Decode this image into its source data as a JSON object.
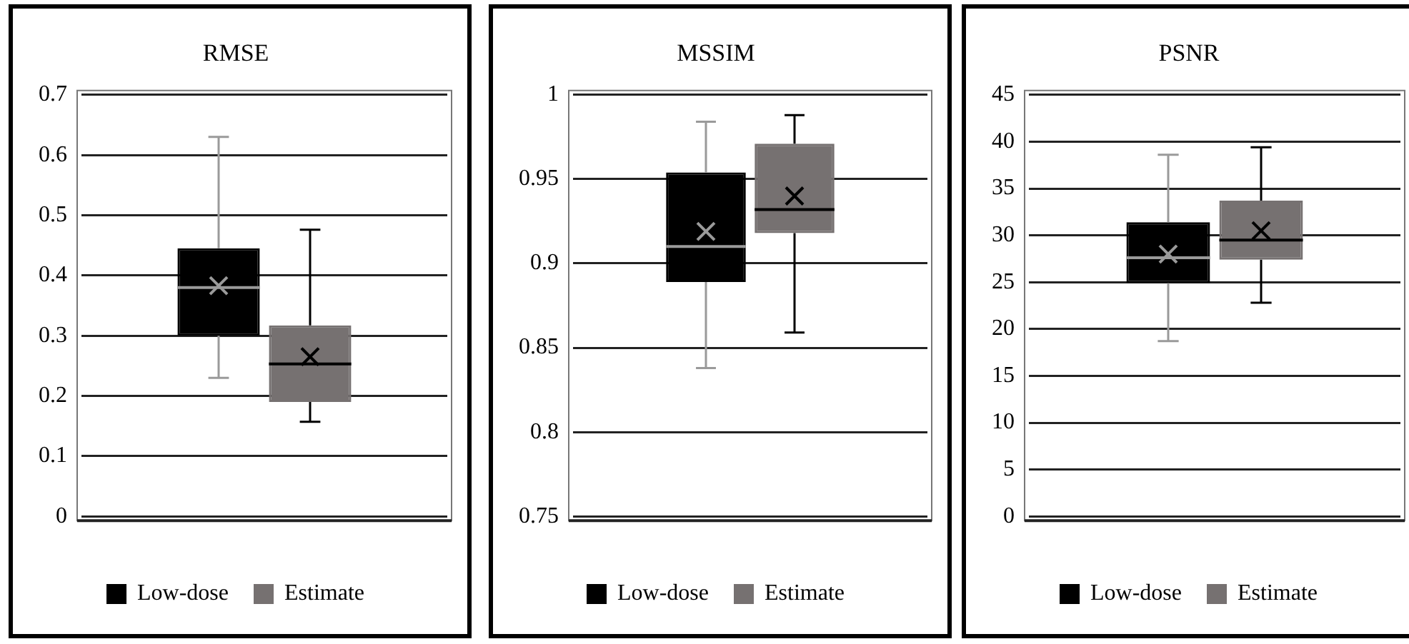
{
  "chart_data": [
    {
      "type": "box",
      "title": "RMSE",
      "categories": [
        null
      ],
      "series": [
        {
          "name": "Low-dose",
          "color": "#000000",
          "boxes": [
            {
              "low": 0.23,
              "q1": 0.3,
              "median": 0.38,
              "q3": 0.445,
              "high": 0.63,
              "mean": 0.383
            }
          ]
        },
        {
          "name": "Estimate",
          "color": "#767171",
          "boxes": [
            {
              "low": 0.157,
              "q1": 0.19,
              "median": 0.253,
              "q3": 0.317,
              "high": 0.476,
              "mean": 0.265
            }
          ]
        }
      ],
      "ylim": [
        0,
        0.7
      ],
      "yticks": [
        0,
        0.1,
        0.2,
        0.3,
        0.4,
        0.5,
        0.6,
        0.7
      ],
      "grid": "y",
      "legend": "bottom"
    },
    {
      "type": "box",
      "title": "MSSIM",
      "categories": [
        null
      ],
      "series": [
        {
          "name": "Low-dose",
          "color": "#000000",
          "boxes": [
            {
              "low": 0.838,
              "q1": 0.889,
              "median": 0.91,
              "q3": 0.954,
              "high": 0.984,
              "mean": 0.919
            }
          ]
        },
        {
          "name": "Estimate",
          "color": "#767171",
          "boxes": [
            {
              "low": 0.859,
              "q1": 0.918,
              "median": 0.932,
              "q3": 0.971,
              "high": 0.988,
              "mean": 0.94
            }
          ]
        }
      ],
      "ylim": [
        0.75,
        1
      ],
      "yticks": [
        0.75,
        0.8,
        0.85,
        0.9,
        0.95,
        1
      ],
      "grid": "y",
      "legend": "bottom"
    },
    {
      "type": "box",
      "title": "PSNR",
      "categories": [
        null
      ],
      "series": [
        {
          "name": "Low-dose",
          "color": "#000000",
          "boxes": [
            {
              "low": 18.7,
              "q1": 24.9,
              "median": 27.6,
              "q3": 31.4,
              "high": 38.6,
              "mean": 28
            }
          ]
        },
        {
          "name": "Estimate",
          "color": "#767171",
          "boxes": [
            {
              "low": 22.8,
              "q1": 27.4,
              "median": 29.5,
              "q3": 33.7,
              "high": 39.4,
              "mean": 30.5
            }
          ]
        }
      ],
      "ylim": [
        0,
        45
      ],
      "yticks": [
        0,
        5,
        10,
        15,
        20,
        25,
        30,
        35,
        40,
        45
      ],
      "grid": "y",
      "legend": "bottom"
    }
  ]
}
